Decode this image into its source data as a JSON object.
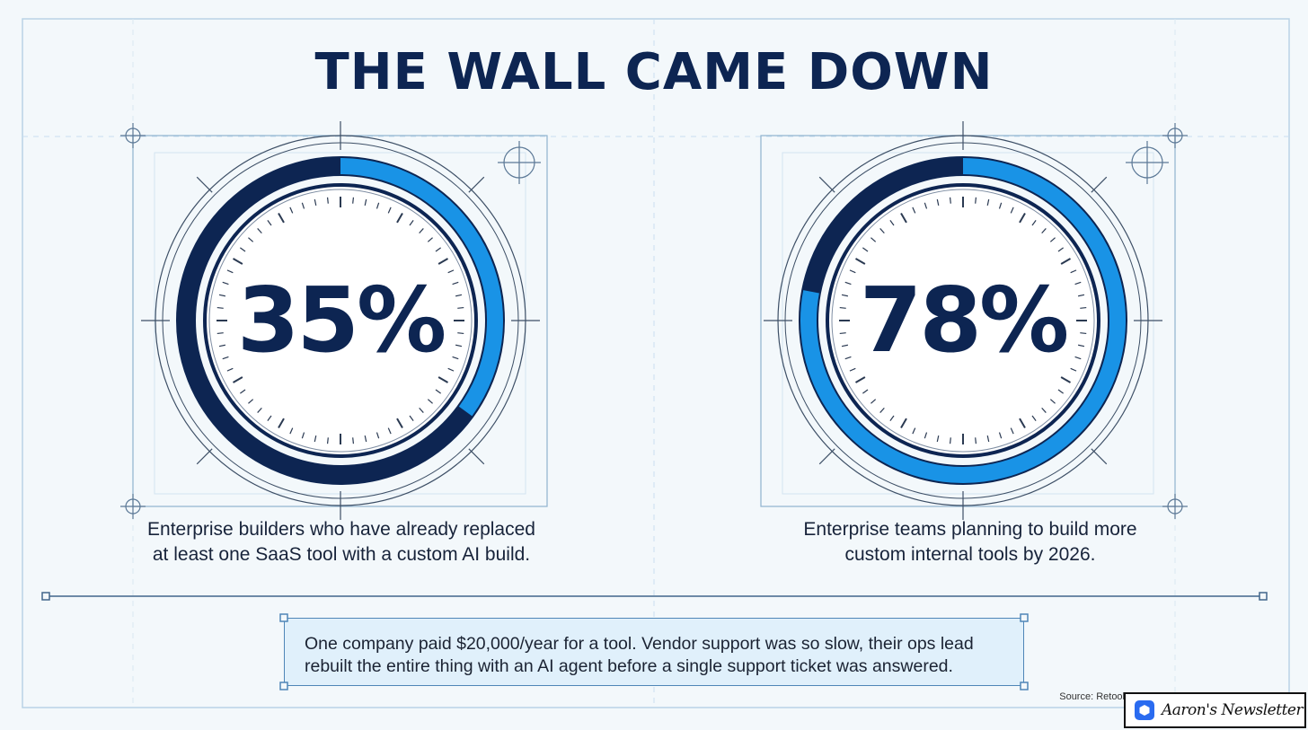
{
  "title": "THE WALL CAME DOWN",
  "chart_data": [
    {
      "type": "pie",
      "style": "donut-gauge",
      "label": "35%",
      "value": 35,
      "max": 100,
      "caption": [
        "Enterprise builders who have already replaced",
        "at least one SaaS tool with a custom AI build."
      ],
      "colors": {
        "filled": "#1993e6",
        "remaining": "#0d2552"
      }
    },
    {
      "type": "pie",
      "style": "donut-gauge",
      "label": "78%",
      "value": 78,
      "max": 100,
      "caption": [
        "Enterprise teams planning to build more",
        "custom internal tools by 2026."
      ],
      "colors": {
        "filled": "#1993e6",
        "remaining": "#0d2552"
      }
    }
  ],
  "callout": {
    "lines": [
      "One company paid $20,000/year for a tool. Vendor support was so slow, their ops lead",
      "rebuilt the entire thing with an AI agent before a single support ticket was answered."
    ]
  },
  "source": "Source: Retool",
  "badge": {
    "text": "Aaron's Newsletter",
    "icon": "newsletter-logo-icon"
  },
  "colors": {
    "navy": "#0d2552",
    "accent": "#1993e6",
    "background": "#f3f8fb",
    "grid": "#b9d3e6"
  }
}
